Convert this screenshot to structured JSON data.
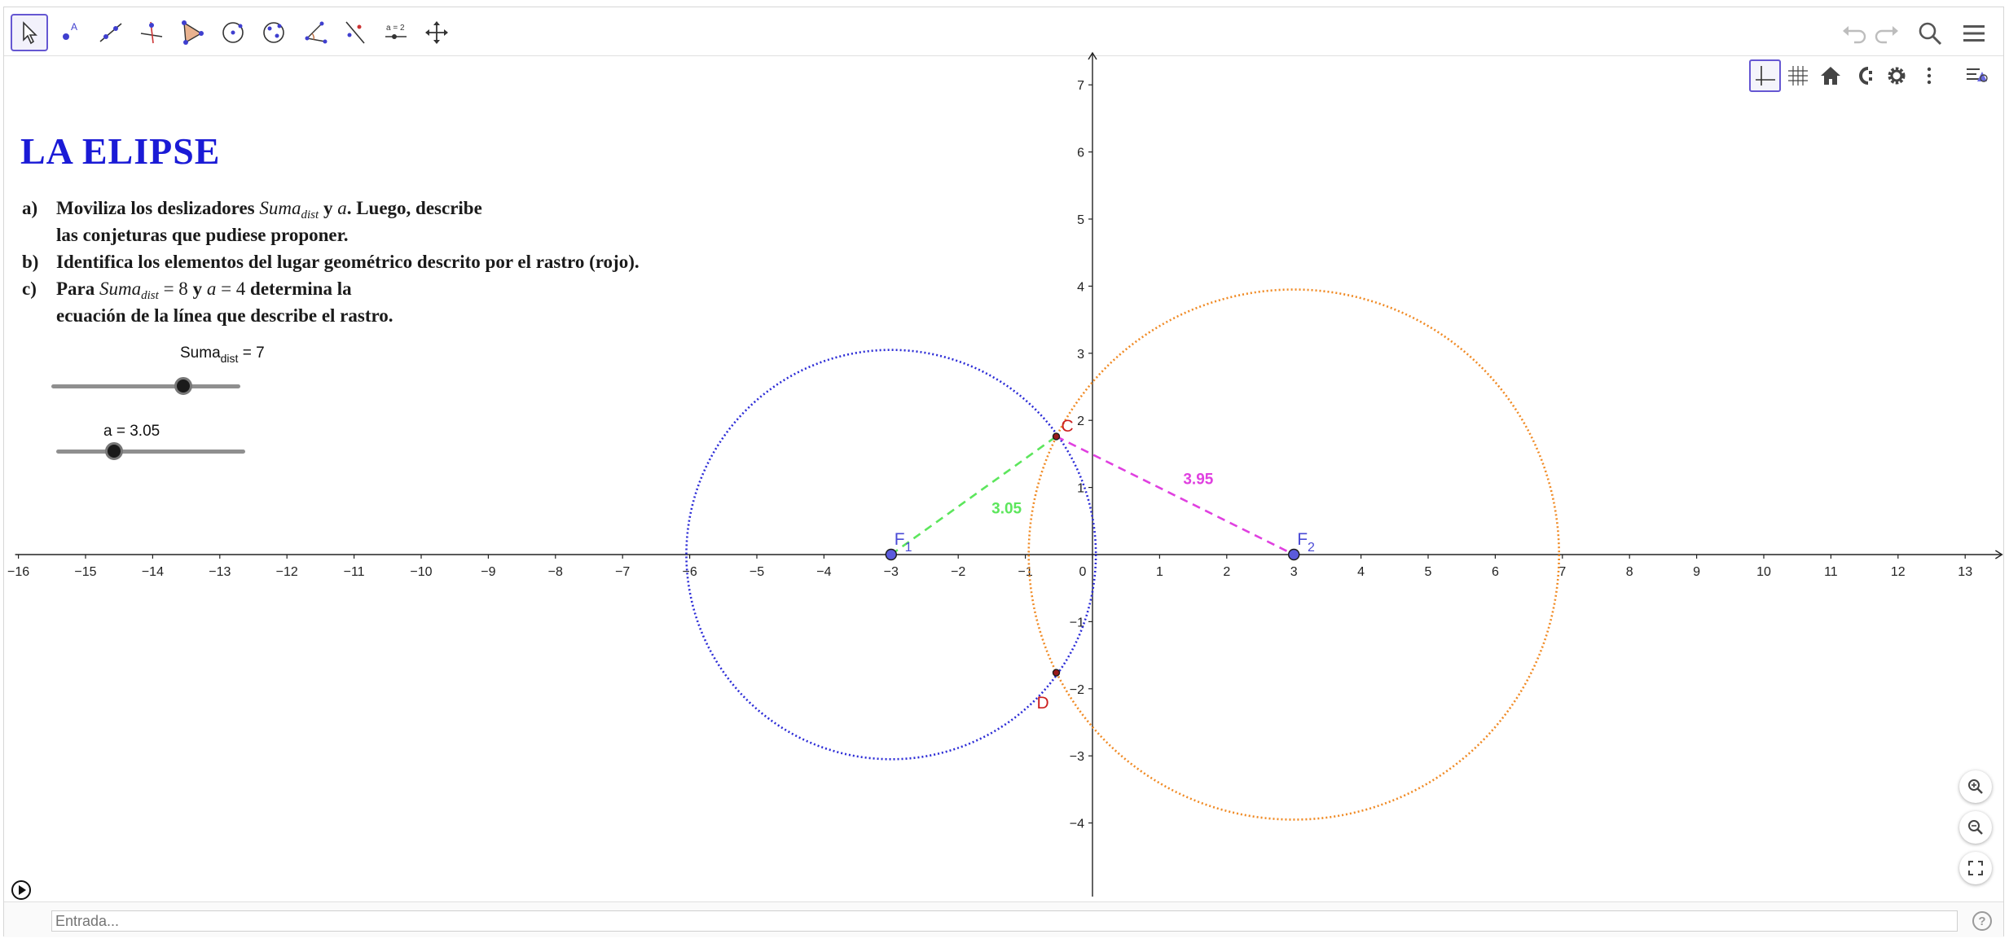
{
  "toolbar": {
    "tools": [
      "move-tool",
      "point-tool",
      "line-tool",
      "perpendicular-tool",
      "polygon-tool",
      "circle-center-tool",
      "ellipse-tool",
      "angle-tool",
      "reflect-tool",
      "slider-tool",
      "move-view-tool"
    ],
    "slider_tool_label": "a = 2"
  },
  "title": "LA ELIPSE",
  "instructions": {
    "a_mark": "a)",
    "a_line1_pre": "Moviliza los deslizadores ",
    "a_var1": "Suma",
    "a_var1_sub": "dist",
    "a_and": " y  ",
    "a_var2": "a",
    "a_line1_post": ". Luego, describe",
    "a_line2": "las conjeturas que pudiese proponer.",
    "b_mark": "b)",
    "b_line": "Identifica los elementos del lugar geométrico descrito por el rastro (rojo).",
    "c_mark": "c)",
    "c_pre": "Para  ",
    "c_var1": "Suma",
    "c_var1_sub": "dist",
    "c_eq1": " = 8",
    "c_and": " y  ",
    "c_var2": "a",
    "c_eq2": " = 4",
    "c_post": " determina la",
    "c_line2": "ecuación de la línea que describe el rastro."
  },
  "sliders": {
    "suma": {
      "label": "Suma",
      "label_sub": "dist",
      "value_text": " = 7",
      "min": 0,
      "max": 10,
      "value": 7
    },
    "a": {
      "label": "a = 3.05",
      "min": 0,
      "max": 10,
      "value": 3.05
    }
  },
  "graph": {
    "x_range": [
      -16,
      13.5
    ],
    "y_range": [
      -5,
      7.5
    ],
    "x_ticks": [
      -16,
      -15,
      -14,
      -13,
      -12,
      -11,
      -10,
      -9,
      -8,
      -7,
      -6,
      -5,
      -4,
      -3,
      -2,
      -1,
      0,
      1,
      2,
      3,
      4,
      5,
      6,
      7,
      8,
      9,
      10,
      11,
      12,
      13
    ],
    "y_ticks": [
      -4,
      -3,
      -2,
      -1,
      1,
      2,
      3,
      4,
      5,
      6,
      7
    ],
    "points": [
      {
        "name": "F",
        "sub": "1",
        "x": -3,
        "y": 0,
        "color": "#4a4ad6"
      },
      {
        "name": "F",
        "sub": "2",
        "x": 3,
        "y": 0,
        "color": "#4a4ad6"
      },
      {
        "name": "C",
        "sub": "",
        "x": -0.54,
        "y": 1.76,
        "color": "#cc1f1f"
      },
      {
        "name": "D",
        "sub": "",
        "x": -0.54,
        "y": -1.76,
        "color": "#cc1f1f"
      }
    ],
    "circle_f1": {
      "cx": -3,
      "cy": 0,
      "r": 3.05,
      "color": "#2b2bd6"
    },
    "circle_f2": {
      "cx": 3,
      "cy": 0,
      "r": 3.95,
      "color": "#f08a24"
    },
    "segment_f1c": {
      "label": "3.05",
      "color": "#5ce65c"
    },
    "segment_cf2": {
      "label": "3.95",
      "color": "#e040e0"
    }
  },
  "input_bar": {
    "placeholder": "Entrada..."
  },
  "help_label": "?"
}
